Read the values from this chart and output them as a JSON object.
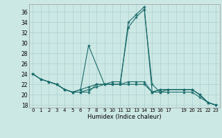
{
  "title": "",
  "xlabel": "Humidex (Indice chaleur)",
  "ylabel": "",
  "bg_color": "#cce8e4",
  "line_color": "#1a6b6b",
  "grid_color": "#aacfcf",
  "ylim": [
    17.5,
    37.5
  ],
  "xlim": [
    -0.5,
    23.5
  ],
  "yticks": [
    18,
    20,
    22,
    24,
    26,
    28,
    30,
    32,
    34,
    36
  ],
  "xtick_labels": [
    "0",
    "1",
    "2",
    "3",
    "4",
    "5",
    "6",
    "7",
    "8",
    "9",
    "10",
    "11",
    "12",
    "13",
    "14",
    "15",
    "16",
    "17",
    "",
    "19",
    "20",
    "21",
    "22",
    "23"
  ],
  "xtick_positions": [
    0,
    1,
    2,
    3,
    4,
    5,
    6,
    7,
    8,
    9,
    10,
    11,
    12,
    13,
    14,
    15,
    16,
    17,
    18,
    19,
    20,
    21,
    22,
    23
  ],
  "series": [
    {
      "x": [
        0,
        1,
        2,
        3,
        4,
        5,
        6,
        7,
        9,
        10,
        11,
        12,
        13,
        14,
        15,
        16,
        17,
        19,
        20,
        21,
        22,
        23
      ],
      "y": [
        24,
        23,
        22.5,
        22,
        21,
        20.5,
        21,
        29.5,
        22,
        22,
        22,
        34,
        35.5,
        37,
        20.5,
        21,
        21,
        21,
        21,
        20,
        18.5,
        18
      ]
    },
    {
      "x": [
        0,
        1,
        2,
        3,
        4,
        5,
        6,
        7,
        8,
        9,
        10,
        11,
        12,
        13,
        14,
        15,
        16,
        17,
        19,
        20,
        21,
        22,
        23
      ],
      "y": [
        24,
        23,
        22.5,
        22,
        21,
        20.5,
        21,
        21.5,
        22,
        22,
        22,
        22,
        22,
        22,
        22,
        20.5,
        21,
        21,
        21,
        21,
        20,
        18.5,
        18
      ]
    },
    {
      "x": [
        0,
        1,
        2,
        3,
        4,
        5,
        6,
        7,
        8,
        9,
        10,
        11,
        12,
        13,
        14,
        15,
        16,
        17,
        19,
        20,
        21,
        22,
        23
      ],
      "y": [
        24,
        23,
        22.5,
        22,
        21,
        20.5,
        20.5,
        21,
        21.5,
        22,
        22,
        22,
        22.5,
        22.5,
        22.5,
        20.5,
        20.5,
        21,
        21,
        21,
        20,
        18.5,
        18
      ]
    },
    {
      "x": [
        2,
        3,
        4,
        5,
        6,
        7,
        8,
        9,
        10,
        11,
        12,
        13,
        14,
        15,
        16,
        17,
        19,
        20,
        21,
        22,
        23
      ],
      "y": [
        22.5,
        22,
        21,
        20.5,
        20.5,
        20.5,
        22,
        22,
        22.5,
        22.5,
        33,
        35,
        36.5,
        22,
        20.5,
        20.5,
        20.5,
        20.5,
        19.5,
        18.5,
        18
      ]
    }
  ]
}
